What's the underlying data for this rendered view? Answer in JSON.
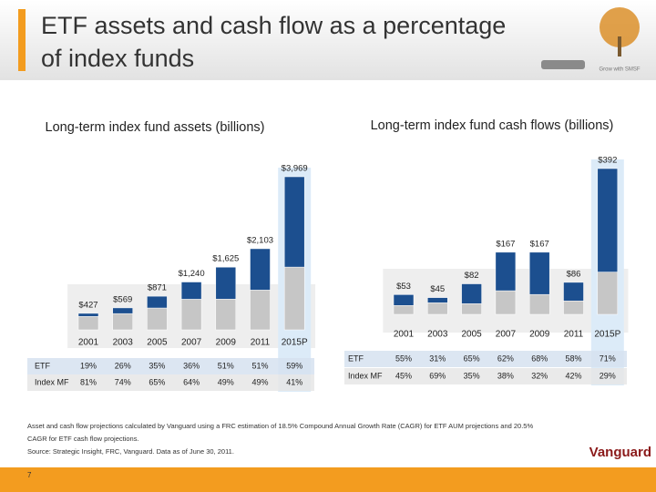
{
  "header": {
    "title_lines": [
      "ETF assets and cash flow as a percentage",
      "of index funds"
    ],
    "logo_text": "Grow with SMSF"
  },
  "chart_data": [
    {
      "type": "bar",
      "title": "Long-term index fund assets (billions)",
      "categories": [
        "2001",
        "2003",
        "2005",
        "2007",
        "2009",
        "2011",
        "2015P"
      ],
      "values": [
        427,
        569,
        871,
        1240,
        1625,
        2103,
        3969
      ],
      "value_labels": [
        "$427",
        "$569",
        "$871",
        "$1,240",
        "$1,625",
        "$2,103",
        "$3,969"
      ],
      "series": [
        {
          "name": "ETF",
          "color": "#1c4f8f",
          "values": [
            19,
            26,
            35,
            36,
            51,
            51,
            59
          ],
          "value_labels": [
            "19%",
            "26%",
            "35%",
            "36%",
            "51%",
            "51%",
            "59%"
          ]
        },
        {
          "name": "Index MF",
          "color": "#c6c6c6",
          "values": [
            81,
            74,
            65,
            64,
            49,
            49,
            41
          ],
          "value_labels": [
            "81%",
            "74%",
            "65%",
            "64%",
            "49%",
            "49%",
            "41%"
          ]
        }
      ]
    },
    {
      "type": "bar",
      "title": "Long-term index fund cash flows (billions)",
      "categories": [
        "2001",
        "2003",
        "2005",
        "2007",
        "2009",
        "2011",
        "2015P"
      ],
      "values": [
        53,
        45,
        82,
        167,
        167,
        86,
        392
      ],
      "value_labels": [
        "$53",
        "$45",
        "$82",
        "$167",
        "$167",
        "$86",
        "$392"
      ],
      "series": [
        {
          "name": "ETF",
          "color": "#1c4f8f",
          "values": [
            55,
            31,
            65,
            62,
            68,
            58,
            71
          ],
          "value_labels": [
            "55%",
            "31%",
            "65%",
            "62%",
            "68%",
            "58%",
            "71%"
          ]
        },
        {
          "name": "Index MF",
          "color": "#c6c6c6",
          "values": [
            45,
            69,
            35,
            38,
            32,
            42,
            29
          ],
          "value_labels": [
            "45%",
            "69%",
            "35%",
            "38%",
            "32%",
            "42%",
            "29%"
          ]
        }
      ]
    }
  ],
  "footer": {
    "notes": [
      "Asset and cash flow projections calculated by Vanguard using a FRC estimation of 18.5% Compound Annual Growth Rate (CAGR) for ETF AUM projections and 20.5%",
      "CAGR for ETF cash flow projections.",
      "Source: Strategic Insight, FRC, Vanguard. Data as of June 30, 2011."
    ],
    "brand": "Vanguard",
    "page_number": "7"
  }
}
